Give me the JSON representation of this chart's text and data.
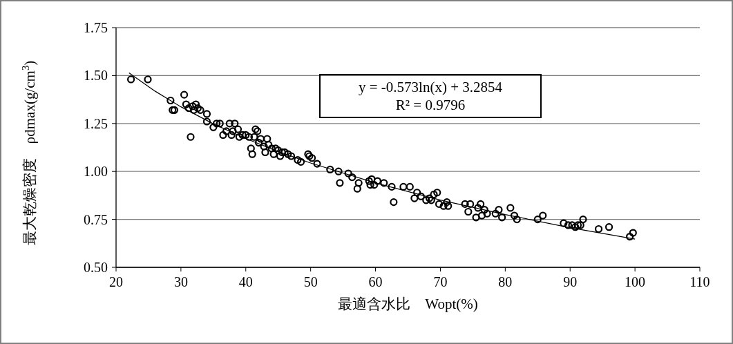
{
  "chart_data": {
    "type": "scatter",
    "xlabel": "最適含水比　Wopt(%)",
    "ylabel": "最大乾燥密度　ρdmax(g/cm$^{3}$)",
    "annotations": [
      "y = -0.573ln(x) + 3.2854",
      "R² = 0.9796"
    ],
    "xlim": [
      20,
      110
    ],
    "xticks": [
      20,
      30,
      40,
      50,
      60,
      70,
      80,
      90,
      100,
      110
    ],
    "ylim": [
      0.5,
      1.75
    ],
    "yticks": [
      {
        "value": 0.5,
        "label": "0.50"
      },
      {
        "value": 0.75,
        "label": "0.75"
      },
      {
        "value": 1.0,
        "label": "1.00"
      },
      {
        "value": 1.25,
        "label": "1.25"
      },
      {
        "value": 1.5,
        "label": "1.50"
      },
      {
        "value": 1.75,
        "label": "1.75"
      }
    ],
    "grid": "y",
    "legend": false,
    "marker": "circle",
    "series": [
      {
        "color": "#000000",
        "x": [
          22.3,
          24.9,
          28.4,
          28.7,
          29.0,
          30.5,
          30.8,
          31.2,
          31.5,
          31.8,
          32.0,
          32.3,
          32.6,
          33.0,
          34.0,
          34.0,
          35.0,
          35.5,
          36.0,
          36.5,
          37.0,
          37.5,
          37.8,
          38.0,
          38.3,
          38.8,
          39.0,
          39.5,
          40.0,
          40.5,
          40.8,
          41.0,
          41.3,
          41.5,
          41.8,
          42.0,
          42.3,
          42.8,
          43.0,
          43.3,
          43.5,
          44.0,
          44.3,
          44.6,
          45.0,
          45.3,
          45.6,
          46.0,
          46.5,
          47.0,
          48.0,
          48.5,
          49.6,
          49.8,
          50.2,
          51.0,
          53.0,
          54.3,
          54.5,
          55.8,
          56.4,
          57.2,
          57.4,
          59.0,
          59.2,
          59.4,
          59.8,
          60.3,
          61.3,
          62.5,
          62.8,
          64.3,
          65.3,
          66.0,
          66.4,
          67.0,
          67.8,
          68.3,
          68.6,
          69.0,
          69.5,
          69.8,
          70.5,
          71.0,
          71.2,
          73.8,
          74.3,
          74.6,
          75.5,
          75.8,
          76.2,
          76.4,
          76.8,
          77.2,
          78.5,
          79.0,
          79.5,
          80.8,
          81.4,
          81.8,
          85.0,
          85.8,
          89.0,
          89.7,
          90.3,
          90.8,
          91.2,
          91.6,
          92.0,
          94.4,
          96.0,
          99.2,
          99.7
        ],
        "values": [
          1.48,
          1.48,
          1.37,
          1.32,
          1.32,
          1.4,
          1.35,
          1.33,
          1.18,
          1.34,
          1.32,
          1.35,
          1.33,
          1.32,
          1.3,
          1.26,
          1.23,
          1.25,
          1.25,
          1.19,
          1.21,
          1.25,
          1.19,
          1.21,
          1.25,
          1.22,
          1.18,
          1.19,
          1.19,
          1.18,
          1.12,
          1.09,
          1.18,
          1.22,
          1.21,
          1.15,
          1.17,
          1.13,
          1.1,
          1.17,
          1.14,
          1.12,
          1.09,
          1.12,
          1.11,
          1.08,
          1.1,
          1.1,
          1.09,
          1.08,
          1.06,
          1.05,
          1.09,
          1.08,
          1.07,
          1.04,
          1.01,
          1.0,
          0.94,
          0.99,
          0.97,
          0.91,
          0.94,
          0.95,
          0.93,
          0.96,
          0.93,
          0.95,
          0.94,
          0.92,
          0.84,
          0.92,
          0.92,
          0.86,
          0.89,
          0.87,
          0.85,
          0.86,
          0.85,
          0.88,
          0.89,
          0.83,
          0.82,
          0.84,
          0.82,
          0.83,
          0.79,
          0.83,
          0.76,
          0.81,
          0.83,
          0.77,
          0.8,
          0.78,
          0.78,
          0.8,
          0.76,
          0.81,
          0.77,
          0.75,
          0.75,
          0.77,
          0.73,
          0.72,
          0.72,
          0.71,
          0.72,
          0.72,
          0.75,
          0.7,
          0.71,
          0.66,
          0.68
        ]
      },
      {
        "type": "line",
        "color": "#000000",
        "marker": "none",
        "x": [
          22,
          26,
          30,
          35,
          40,
          45,
          50,
          60,
          70,
          80,
          90,
          100
        ],
        "values": [
          1.514,
          1.419,
          1.337,
          1.248,
          1.172,
          1.104,
          1.044,
          0.94,
          0.851,
          0.775,
          0.707,
          0.647
        ]
      }
    ]
  }
}
